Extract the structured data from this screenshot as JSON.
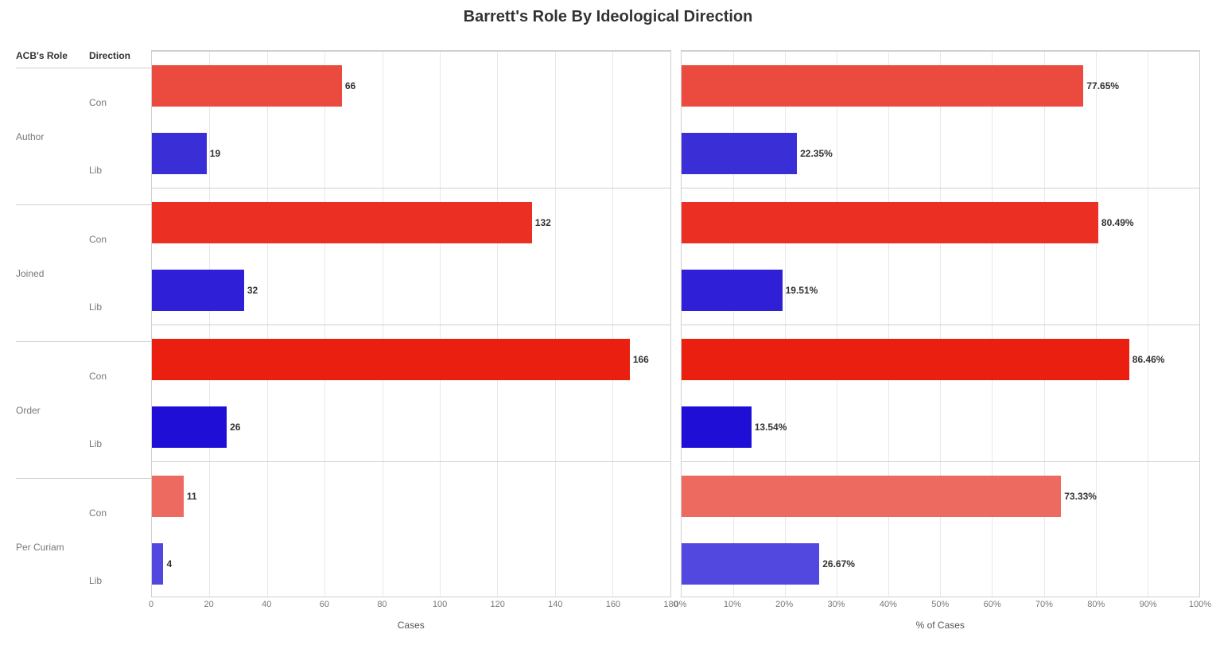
{
  "title": "Barrett's Role By Ideological Direction",
  "columns": {
    "role": "ACB's Role",
    "direction": "Direction"
  },
  "groups": [
    {
      "role": "Author",
      "rows": [
        {
          "dir": "Con",
          "cases": 66,
          "pct": 77.65,
          "color": "#eb4b3f",
          "colorPct": "#eb4b3f"
        },
        {
          "dir": "Lib",
          "cases": 19,
          "pct": 22.35,
          "color": "#3a2fd6",
          "colorPct": "#3a2fd6"
        }
      ]
    },
    {
      "role": "Joined",
      "rows": [
        {
          "dir": "Con",
          "cases": 132,
          "pct": 80.49,
          "color": "#eb2f23",
          "colorPct": "#eb2f23"
        },
        {
          "dir": "Lib",
          "cases": 32,
          "pct": 19.51,
          "color": "#2f1fd6",
          "colorPct": "#2f1fd6"
        }
      ]
    },
    {
      "role": "Order",
      "rows": [
        {
          "dir": "Con",
          "cases": 166,
          "pct": 86.46,
          "color": "#eb1f10",
          "colorPct": "#eb1f10"
        },
        {
          "dir": "Lib",
          "cases": 26,
          "pct": 13.54,
          "color": "#1f0fd6",
          "colorPct": "#1f0fd6"
        }
      ]
    },
    {
      "role": "Per Curiam",
      "rows": [
        {
          "dir": "Con",
          "cases": 11,
          "pct": 73.33,
          "color": "#ed6a61",
          "colorPct": "#ed6a61"
        },
        {
          "dir": "Lib",
          "cases": 4,
          "pct": 26.67,
          "color": "#5248e0",
          "colorPct": "#5248e0"
        }
      ]
    }
  ],
  "leftAxis": {
    "title": "Cases",
    "max": 180,
    "ticks": [
      0,
      20,
      40,
      60,
      80,
      100,
      120,
      140,
      160,
      180
    ]
  },
  "rightAxis": {
    "title": "% of Cases",
    "max": 100,
    "ticks": [
      0,
      10,
      20,
      30,
      40,
      50,
      60,
      70,
      80,
      90,
      100
    ],
    "tickSuffix": "%"
  },
  "style": {
    "background": "#ffffff",
    "gridColor": "#e8e8e8",
    "borderColor": "#d0d0d0",
    "tickLabelColor": "#787878",
    "labelFontSize": 12,
    "titleFontSize": 20,
    "barHeight": 52
  }
}
